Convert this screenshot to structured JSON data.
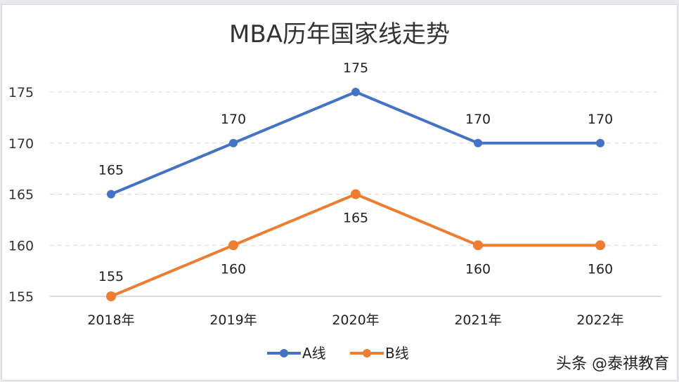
{
  "chart_data": {
    "type": "line",
    "title": "MBA历年国家线走势",
    "categories": [
      "2018年",
      "2019年",
      "2020年",
      "2021年",
      "2022年"
    ],
    "series": [
      {
        "name": "A线",
        "values": [
          165,
          170,
          175,
          170,
          170
        ],
        "color": "#4472c4"
      },
      {
        "name": "B线",
        "values": [
          155,
          160,
          165,
          160,
          160
        ],
        "color": "#ed7d31"
      }
    ],
    "yticks": [
      155,
      160,
      165,
      170,
      175
    ],
    "ylim": [
      155,
      175
    ],
    "grid": true,
    "data_labels": true,
    "legend": "bottom"
  },
  "watermark": "头条 @泰祺教育"
}
